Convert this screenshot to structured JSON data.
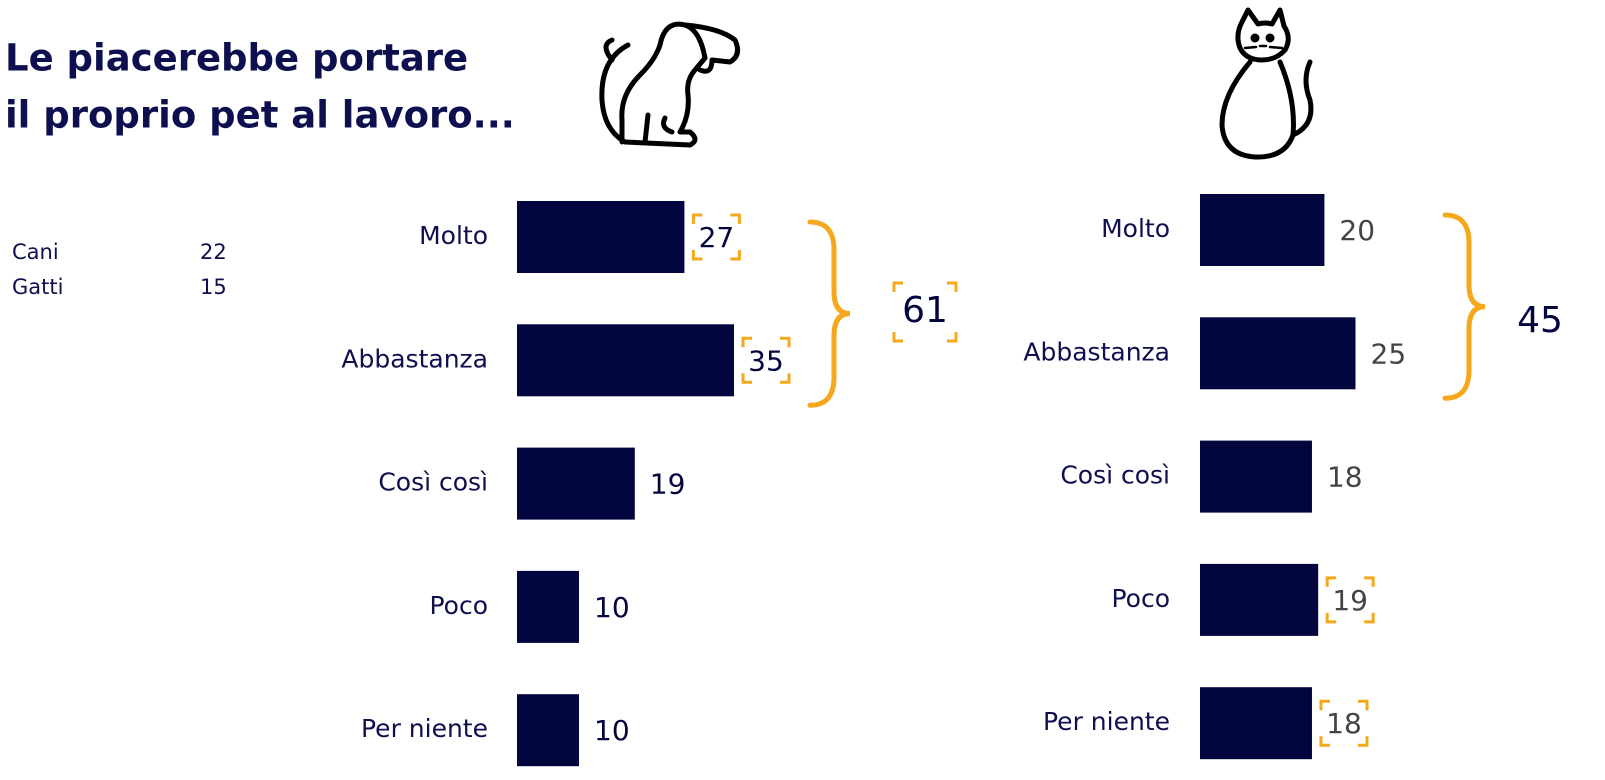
{
  "title": [
    "Le piacerebbe portare",
    "il proprio pet al lavoro..."
  ],
  "side_table": {
    "rows": [
      [
        "Cani",
        "22"
      ],
      [
        "Gatti",
        "15"
      ]
    ]
  },
  "chart_data": [
    {
      "type": "bar",
      "orientation": "horizontal",
      "categories": [
        "Molto",
        "Abbastanza",
        "Così così",
        "Poco",
        "Per niente"
      ],
      "values": [
        27,
        35,
        19,
        10,
        10
      ],
      "highlighted": [
        true,
        true,
        false,
        false,
        false
      ],
      "color": "#03053f",
      "value_color": "#03053f",
      "total": 61,
      "total_highlighted": true
    },
    {
      "type": "bar",
      "orientation": "horizontal",
      "categories": [
        "Molto",
        "Abbastanza",
        "Così così",
        "Poco",
        "Per niente"
      ],
      "values": [
        20,
        25,
        18,
        19,
        18
      ],
      "highlighted": [
        false,
        false,
        false,
        true,
        true
      ],
      "color": "#03053f",
      "value_color": "#444444",
      "total": 45,
      "total_highlighted": false
    }
  ]
}
